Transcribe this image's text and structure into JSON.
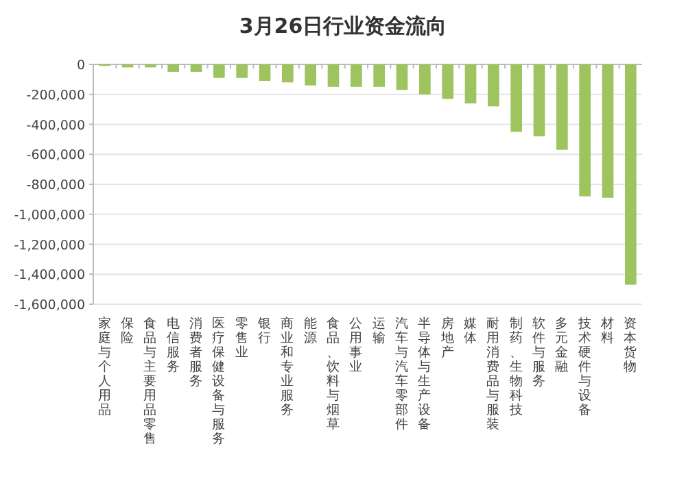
{
  "chart_data": {
    "type": "bar",
    "title": "3月26日行业资金流向",
    "categories": [
      "家庭与个人用品",
      "保险",
      "食品与主要用品零售",
      "电信服务",
      "消费者服务",
      "医疗保健设备与服务",
      "零售业",
      "银行",
      "商业和专业服务",
      "能源",
      "食品、饮料与烟草",
      "公用事业",
      "运输",
      "汽车与汽车零部件",
      "半导体与生产设备",
      "房地产",
      "媒体",
      "耐用消费品与服装",
      "制药、生物科技",
      "软件与服务",
      "多元金融",
      "技术硬件与设备",
      "材料",
      "资本货物"
    ],
    "values": [
      -10000,
      -20000,
      -20000,
      -50000,
      -50000,
      -90000,
      -90000,
      -110000,
      -120000,
      -140000,
      -150000,
      -150000,
      -150000,
      -170000,
      -200000,
      -230000,
      -260000,
      -280000,
      -450000,
      -480000,
      -570000,
      -880000,
      -890000,
      -1470000
    ],
    "color": "#9dc45f",
    "ylim": [
      -1600000,
      0
    ],
    "yticks": [
      {
        "value": 0,
        "label": "0"
      },
      {
        "value": -200000,
        "label": "-200,000"
      },
      {
        "value": -400000,
        "label": "-400,000"
      },
      {
        "value": -600000,
        "label": "-600,000"
      },
      {
        "value": -800000,
        "label": "-800,000"
      },
      {
        "value": -1000000,
        "label": "-1,000,000"
      },
      {
        "value": -1200000,
        "label": "-1,200,000"
      },
      {
        "value": -1400000,
        "label": "-1,400,000"
      },
      {
        "value": -1600000,
        "label": "-1,600,000"
      }
    ],
    "grid": "y"
  }
}
